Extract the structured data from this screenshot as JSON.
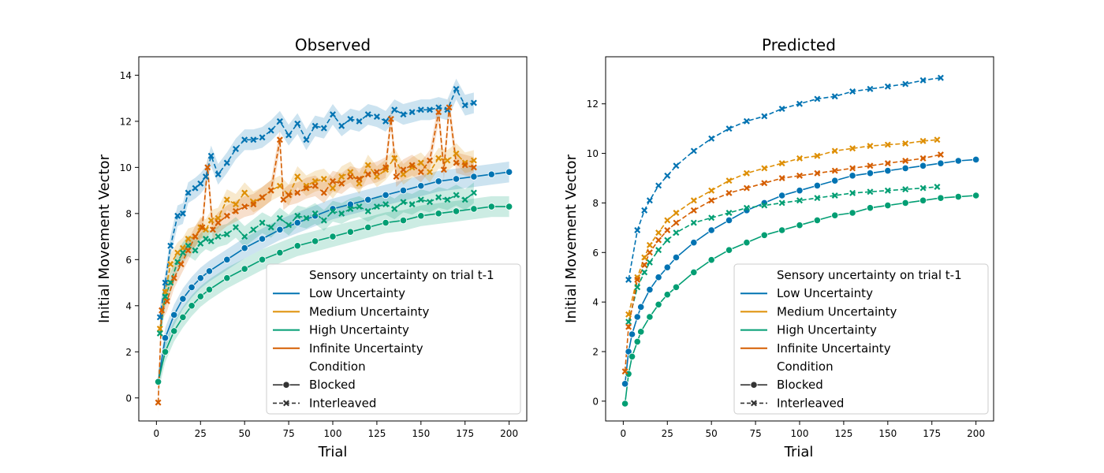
{
  "legend": {
    "hue_title": "Sensory uncertainty on trial t-1",
    "style_title": "Condition",
    "entries": [
      {
        "label": "Low Uncertainty",
        "color": "#0173b2"
      },
      {
        "label": "Medium Uncertainty",
        "color": "#de8f05"
      },
      {
        "label": "High Uncertainty",
        "color": "#029e73"
      },
      {
        "label": "Infinite Uncertainty",
        "color": "#d55e00"
      }
    ],
    "styles": [
      {
        "label": "Blocked",
        "marker": "circle",
        "dash": "solid"
      },
      {
        "label": "Interleaved",
        "marker": "x",
        "dash": "dashed"
      }
    ],
    "placement": "lower-right"
  },
  "chart_data": [
    {
      "type": "line",
      "title": "Observed",
      "xlabel": "Trial",
      "ylabel": "Initial Movement Vector",
      "xlim": [
        -10,
        210
      ],
      "ylim": [
        -1.0,
        14.8
      ],
      "xticks": [
        "0",
        "25",
        "50",
        "75",
        "100",
        "125",
        "150",
        "175",
        "200"
      ],
      "yticks": [
        "0",
        "2",
        "4",
        "6",
        "8",
        "10",
        "12",
        "14"
      ],
      "grid": false,
      "confidence_bands": true,
      "series": [
        {
          "hue": "Low Uncertainty",
          "condition": "Blocked",
          "x": [
            1,
            5,
            10,
            15,
            20,
            25,
            30,
            40,
            50,
            60,
            70,
            80,
            90,
            100,
            110,
            120,
            130,
            140,
            150,
            160,
            170,
            180,
            190,
            200
          ],
          "y": [
            0.7,
            2.6,
            3.6,
            4.3,
            4.8,
            5.2,
            5.5,
            6.0,
            6.5,
            6.9,
            7.3,
            7.6,
            7.9,
            8.2,
            8.4,
            8.6,
            8.8,
            9.0,
            9.2,
            9.4,
            9.5,
            9.6,
            9.7,
            9.8
          ]
        },
        {
          "hue": "High Uncertainty",
          "condition": "Blocked",
          "x": [
            1,
            5,
            10,
            15,
            20,
            25,
            30,
            40,
            50,
            60,
            70,
            80,
            90,
            100,
            110,
            120,
            130,
            140,
            150,
            160,
            170,
            180,
            190,
            200
          ],
          "y": [
            0.7,
            2.0,
            2.9,
            3.5,
            4.0,
            4.4,
            4.7,
            5.2,
            5.6,
            6.0,
            6.3,
            6.6,
            6.8,
            7.0,
            7.2,
            7.4,
            7.6,
            7.7,
            7.9,
            8.0,
            8.1,
            8.2,
            8.3,
            8.3
          ]
        },
        {
          "hue": "Low Uncertainty",
          "condition": "Interleaved",
          "x": [
            2,
            5,
            8,
            12,
            15,
            18,
            22,
            25,
            28,
            31,
            35,
            40,
            45,
            50,
            55,
            60,
            65,
            70,
            75,
            80,
            85,
            90,
            95,
            100,
            105,
            110,
            115,
            120,
            125,
            130,
            135,
            140,
            145,
            150,
            155,
            160,
            165,
            170,
            175,
            180
          ],
          "y": [
            3.5,
            5.0,
            6.6,
            7.9,
            8.0,
            8.9,
            9.1,
            9.3,
            9.6,
            10.5,
            9.7,
            10.2,
            10.8,
            11.2,
            11.2,
            11.3,
            11.6,
            12.0,
            11.4,
            11.9,
            11.2,
            11.8,
            11.7,
            12.3,
            11.8,
            12.1,
            12.0,
            12.3,
            12.2,
            12.0,
            12.5,
            12.3,
            12.4,
            12.5,
            12.5,
            12.6,
            12.5,
            13.4,
            12.7,
            12.8
          ]
        },
        {
          "hue": "Medium Uncertainty",
          "condition": "Interleaved",
          "x": [
            2,
            5,
            8,
            12,
            15,
            18,
            22,
            25,
            28,
            31,
            35,
            40,
            45,
            50,
            55,
            60,
            65,
            70,
            75,
            80,
            85,
            90,
            95,
            100,
            105,
            110,
            115,
            120,
            125,
            130,
            135,
            140,
            145,
            150,
            155,
            160,
            165,
            170,
            175,
            180
          ],
          "y": [
            3.0,
            4.6,
            5.8,
            6.3,
            6.5,
            6.9,
            7.0,
            7.4,
            7.3,
            7.7,
            7.8,
            8.6,
            8.4,
            8.9,
            8.5,
            8.7,
            9.0,
            9.2,
            8.8,
            9.6,
            9.2,
            9.4,
            9.5,
            9.1,
            9.6,
            9.8,
            9.3,
            10.1,
            9.6,
            9.9,
            10.4,
            9.7,
            10.0,
            10.2,
            9.8,
            10.4,
            10.3,
            10.6,
            10.2,
            10.3
          ]
        },
        {
          "hue": "High Uncertainty",
          "condition": "Interleaved",
          "x": [
            2,
            5,
            8,
            12,
            15,
            18,
            22,
            25,
            28,
            31,
            35,
            40,
            45,
            50,
            55,
            60,
            65,
            70,
            75,
            80,
            85,
            90,
            95,
            100,
            105,
            110,
            115,
            120,
            125,
            130,
            135,
            140,
            145,
            150,
            155,
            160,
            165,
            170,
            175,
            180
          ],
          "y": [
            2.8,
            4.4,
            5.0,
            5.9,
            6.3,
            6.6,
            6.4,
            6.7,
            6.9,
            6.8,
            7.0,
            7.1,
            7.4,
            7.0,
            7.3,
            7.6,
            7.4,
            7.8,
            7.5,
            7.9,
            7.8,
            8.0,
            7.7,
            8.1,
            8.0,
            8.2,
            8.3,
            8.1,
            8.3,
            8.4,
            8.2,
            8.5,
            8.4,
            8.6,
            8.5,
            8.7,
            8.6,
            8.8,
            8.6,
            8.9
          ]
        },
        {
          "hue": "Infinite Uncertainty",
          "condition": "Interleaved",
          "x": [
            1,
            3,
            6,
            10,
            14,
            18,
            22,
            26,
            29,
            32,
            35,
            40,
            45,
            50,
            55,
            60,
            65,
            70,
            72,
            75,
            80,
            85,
            90,
            95,
            100,
            105,
            110,
            115,
            120,
            125,
            130,
            133,
            136,
            140,
            145,
            150,
            155,
            160,
            163,
            166,
            170,
            175,
            180
          ],
          "y": [
            -0.2,
            3.8,
            4.2,
            5.2,
            5.8,
            6.4,
            7.0,
            7.4,
            10.0,
            7.3,
            7.6,
            7.9,
            8.1,
            8.3,
            8.4,
            8.7,
            9.0,
            11.2,
            8.6,
            8.8,
            8.9,
            9.1,
            9.2,
            8.9,
            9.4,
            9.3,
            9.6,
            9.5,
            9.7,
            9.8,
            10.0,
            12.1,
            9.6,
            9.9,
            10.1,
            9.8,
            10.3,
            12.4,
            9.9,
            12.6,
            10.2,
            10.1,
            10.0
          ]
        }
      ]
    },
    {
      "type": "line",
      "title": "Predicted",
      "xlabel": "Trial",
      "ylabel": "Initial Movement Vector",
      "xlim": [
        -10,
        210
      ],
      "ylim": [
        -0.8,
        13.9
      ],
      "xticks": [
        "0",
        "25",
        "50",
        "75",
        "100",
        "125",
        "150",
        "175",
        "200"
      ],
      "yticks": [
        "0",
        "2",
        "4",
        "6",
        "8",
        "10",
        "12"
      ],
      "grid": false,
      "confidence_bands": false,
      "series": [
        {
          "hue": "Low Uncertainty",
          "condition": "Blocked",
          "x": [
            1,
            3,
            5,
            8,
            10,
            15,
            20,
            25,
            30,
            40,
            50,
            60,
            70,
            80,
            90,
            100,
            110,
            120,
            130,
            140,
            150,
            160,
            170,
            180,
            190,
            200
          ],
          "y": [
            0.7,
            2.0,
            2.7,
            3.4,
            3.8,
            4.5,
            5.0,
            5.4,
            5.8,
            6.4,
            6.9,
            7.3,
            7.7,
            8.0,
            8.3,
            8.5,
            8.7,
            8.9,
            9.1,
            9.2,
            9.3,
            9.4,
            9.5,
            9.6,
            9.7,
            9.75
          ]
        },
        {
          "hue": "High Uncertainty",
          "condition": "Blocked",
          "x": [
            1,
            3,
            5,
            8,
            10,
            15,
            20,
            25,
            30,
            40,
            50,
            60,
            70,
            80,
            90,
            100,
            110,
            120,
            130,
            140,
            150,
            160,
            170,
            180,
            190,
            200
          ],
          "y": [
            -0.1,
            1.1,
            1.8,
            2.4,
            2.8,
            3.4,
            3.9,
            4.3,
            4.6,
            5.2,
            5.7,
            6.1,
            6.4,
            6.7,
            6.9,
            7.1,
            7.3,
            7.5,
            7.6,
            7.8,
            7.9,
            8.0,
            8.1,
            8.2,
            8.25,
            8.3
          ]
        },
        {
          "hue": "Low Uncertainty",
          "condition": "Interleaved",
          "x": [
            3,
            8,
            12,
            15,
            20,
            25,
            30,
            40,
            50,
            60,
            70,
            80,
            90,
            100,
            110,
            120,
            130,
            140,
            150,
            160,
            170,
            180
          ],
          "y": [
            4.9,
            6.9,
            7.7,
            8.1,
            8.7,
            9.1,
            9.5,
            10.1,
            10.6,
            11.0,
            11.3,
            11.5,
            11.8,
            12.0,
            12.2,
            12.3,
            12.5,
            12.6,
            12.7,
            12.8,
            12.95,
            13.05
          ]
        },
        {
          "hue": "Medium Uncertainty",
          "condition": "Interleaved",
          "x": [
            3,
            8,
            12,
            15,
            20,
            25,
            30,
            40,
            50,
            60,
            70,
            80,
            90,
            100,
            110,
            120,
            130,
            140,
            150,
            160,
            170,
            178
          ],
          "y": [
            3.5,
            5.0,
            5.8,
            6.3,
            6.8,
            7.3,
            7.6,
            8.1,
            8.5,
            8.9,
            9.2,
            9.4,
            9.6,
            9.8,
            9.9,
            10.1,
            10.2,
            10.3,
            10.35,
            10.4,
            10.5,
            10.55
          ]
        },
        {
          "hue": "High Uncertainty",
          "condition": "Interleaved",
          "x": [
            3,
            8,
            12,
            15,
            20,
            25,
            30,
            40,
            50,
            60,
            70,
            80,
            90,
            100,
            110,
            120,
            130,
            140,
            150,
            160,
            170,
            178
          ],
          "y": [
            3.2,
            4.6,
            5.2,
            5.6,
            6.1,
            6.5,
            6.8,
            7.2,
            7.4,
            7.6,
            7.8,
            7.9,
            8.0,
            8.1,
            8.2,
            8.3,
            8.4,
            8.45,
            8.5,
            8.55,
            8.6,
            8.65
          ]
        },
        {
          "hue": "Infinite Uncertainty",
          "condition": "Interleaved",
          "x": [
            1,
            3,
            8,
            12,
            15,
            20,
            25,
            30,
            40,
            50,
            60,
            70,
            80,
            90,
            100,
            110,
            120,
            130,
            140,
            150,
            160,
            170,
            180
          ],
          "y": [
            1.2,
            3.0,
            4.9,
            5.5,
            6.0,
            6.5,
            6.9,
            7.2,
            7.7,
            8.1,
            8.4,
            8.6,
            8.8,
            9.0,
            9.1,
            9.2,
            9.3,
            9.4,
            9.5,
            9.6,
            9.7,
            9.8,
            9.95
          ]
        }
      ]
    }
  ]
}
